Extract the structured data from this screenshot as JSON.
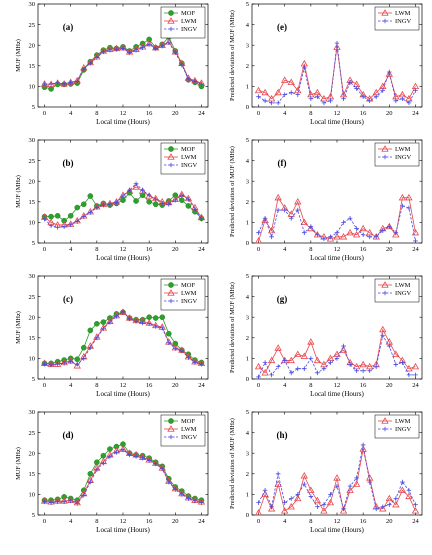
{
  "colors": {
    "mof": "#2ca02c",
    "lwm": "#e8474d",
    "ingv": "#4a4ae0",
    "axis": "#000000"
  },
  "chart_data": [
    {
      "type": "line",
      "panel_label": "(a)",
      "xlabel": "Local time (Hours)",
      "ylabel": "MUF (MHz)",
      "xlim": [
        -1,
        25
      ],
      "ylim": [
        5,
        30
      ],
      "xticks": [
        0,
        4,
        8,
        12,
        16,
        20,
        24
      ],
      "yticks": [
        5,
        10,
        15,
        20,
        25,
        30
      ],
      "legend": "top-right",
      "x": [
        0,
        1,
        2,
        3,
        4,
        5,
        6,
        7,
        8,
        9,
        10,
        11,
        12,
        13,
        14,
        15,
        16,
        17,
        18,
        19,
        20,
        21,
        22,
        23,
        24
      ],
      "series": [
        {
          "name": "MOF",
          "marker": "dot",
          "dashed": false,
          "values": [
            9.8,
            9.4,
            10.5,
            10.5,
            10.6,
            10.8,
            14,
            16,
            17.6,
            18.8,
            19.4,
            19.2,
            19.6,
            18.6,
            19.6,
            20.4,
            21.4,
            19.4,
            20.2,
            22,
            18.6,
            15.6,
            11.6,
            11,
            10
          ]
        },
        {
          "name": "LWM",
          "marker": "tri",
          "dashed": false,
          "values": [
            10.6,
            10.5,
            10.8,
            10.6,
            11,
            11.4,
            14.5,
            15.8,
            17.2,
            18.6,
            19,
            19.2,
            19.4,
            18.4,
            19,
            19.6,
            20.4,
            19.4,
            20,
            20.8,
            18.4,
            15.6,
            12,
            11.4,
            10.8
          ]
        },
        {
          "name": "INGV",
          "marker": "plus",
          "dashed": true,
          "values": [
            10.6,
            10.6,
            10.9,
            10.6,
            11,
            11.2,
            14.2,
            15.6,
            17,
            18.4,
            18.8,
            19,
            19.2,
            18.2,
            18.8,
            19.4,
            20.2,
            19.2,
            19.8,
            20.6,
            18.2,
            15.2,
            11.8,
            11.2,
            10.6
          ]
        }
      ]
    },
    {
      "type": "line",
      "panel_label": "(e)",
      "xlabel": "Local time (Hours)",
      "ylabel": "Predicted deviation of MUF (MHz)",
      "xlim": [
        -1,
        25
      ],
      "ylim": [
        0,
        5
      ],
      "xticks": [
        0,
        4,
        8,
        12,
        16,
        20,
        24
      ],
      "yticks": [
        0,
        1,
        2,
        3,
        4,
        5
      ],
      "legend": "top-right",
      "x": [
        0,
        1,
        2,
        3,
        4,
        5,
        6,
        7,
        8,
        9,
        10,
        11,
        12,
        13,
        14,
        15,
        16,
        17,
        18,
        19,
        20,
        21,
        22,
        23,
        24
      ],
      "series": [
        {
          "name": "LWM",
          "marker": "tri",
          "dashed": false,
          "values": [
            0.8,
            0.7,
            0.4,
            0.7,
            1.3,
            1.2,
            0.8,
            2.1,
            0.6,
            0.7,
            0.4,
            0.5,
            2.9,
            0.6,
            1.3,
            1.1,
            0.6,
            0.4,
            0.7,
            1.0,
            1.6,
            0.5,
            0.6,
            0.4,
            1.0
          ]
        },
        {
          "name": "INGV",
          "marker": "plus",
          "dashed": true,
          "values": [
            0.5,
            0.3,
            0.2,
            0.2,
            0.6,
            0.7,
            0.6,
            1.9,
            0.4,
            0.5,
            0.2,
            0.3,
            3.1,
            0.4,
            1.2,
            0.9,
            0.5,
            0.3,
            0.5,
            0.8,
            1.7,
            0.3,
            0.4,
            0.2,
            0.8
          ]
        }
      ]
    },
    {
      "type": "line",
      "panel_label": "(b)",
      "xlabel": "Local time (Hours)",
      "ylabel": "MUF (MHz)",
      "xlim": [
        -1,
        25
      ],
      "ylim": [
        5,
        30
      ],
      "xticks": [
        0,
        4,
        8,
        12,
        16,
        20,
        24
      ],
      "yticks": [
        5,
        10,
        15,
        20,
        25,
        30
      ],
      "legend": "top-right",
      "x": [
        0,
        1,
        2,
        3,
        4,
        5,
        6,
        7,
        8,
        9,
        10,
        11,
        12,
        13,
        14,
        15,
        16,
        17,
        18,
        19,
        20,
        21,
        22,
        23,
        24
      ],
      "series": [
        {
          "name": "MOF",
          "marker": "dot",
          "dashed": false,
          "values": [
            11.4,
            11.4,
            11.6,
            10.4,
            11.6,
            13.6,
            14.4,
            16.4,
            14,
            14.6,
            14.2,
            14.6,
            15.4,
            17.2,
            15.2,
            16.6,
            15,
            14.4,
            14.2,
            15.2,
            16.6,
            15.4,
            14,
            12.6,
            11
          ]
        },
        {
          "name": "LWM",
          "marker": "tri",
          "dashed": false,
          "values": [
            11.3,
            10,
            9.4,
            9.4,
            9.6,
            10.4,
            11.6,
            12.6,
            13.8,
            14.4,
            14.6,
            15,
            16.6,
            17.6,
            18.6,
            17.6,
            16.4,
            15.8,
            15,
            14.8,
            15.6,
            16.8,
            15.8,
            13.6,
            11.2
          ]
        },
        {
          "name": "INGV",
          "marker": "plus",
          "dashed": true,
          "values": [
            10.8,
            9.2,
            8.8,
            9.0,
            9.4,
            10.2,
            11.4,
            12.4,
            13.6,
            14.2,
            14.4,
            14.8,
            16.4,
            17.8,
            19.4,
            17.8,
            16.6,
            15.6,
            14.6,
            14.4,
            15.4,
            16.6,
            15.6,
            13.2,
            10.8
          ]
        }
      ]
    },
    {
      "type": "line",
      "panel_label": "(f)",
      "xlabel": "Local time (Hours)",
      "ylabel": "Predicted deviation of MUF (MHz)",
      "xlim": [
        -1,
        25
      ],
      "ylim": [
        0,
        5
      ],
      "xticks": [
        0,
        4,
        8,
        12,
        16,
        20,
        24
      ],
      "yticks": [
        0,
        1,
        2,
        3,
        4,
        5
      ],
      "legend": "top-right",
      "x": [
        0,
        1,
        2,
        3,
        4,
        5,
        6,
        7,
        8,
        9,
        10,
        11,
        12,
        13,
        14,
        15,
        16,
        17,
        18,
        19,
        20,
        21,
        22,
        23,
        24
      ],
      "series": [
        {
          "name": "LWM",
          "marker": "tri",
          "dashed": false,
          "values": [
            0.1,
            1.1,
            0.6,
            2.2,
            1.7,
            1.4,
            2.0,
            1.0,
            0.7,
            0.4,
            0.3,
            0.2,
            0.3,
            0.3,
            0.5,
            0.4,
            0.7,
            0.5,
            0.3,
            0.7,
            0.8,
            0.4,
            2.2,
            2.2,
            0.5
          ]
        },
        {
          "name": "INGV",
          "marker": "plus",
          "dashed": true,
          "values": [
            0.5,
            1.2,
            0.3,
            1.6,
            1.6,
            1.2,
            1.6,
            0.5,
            0.8,
            0.4,
            0.2,
            0.3,
            0.5,
            1.0,
            1.2,
            0.7,
            0.4,
            0.3,
            0.3,
            0.6,
            0.8,
            0.5,
            1.8,
            1.7,
            0.1
          ]
        }
      ]
    },
    {
      "type": "line",
      "panel_label": "(c)",
      "xlabel": "Local time (Hours)",
      "ylabel": "MUF (MHz)",
      "xlim": [
        -1,
        25
      ],
      "ylim": [
        5,
        30
      ],
      "xticks": [
        0,
        4,
        8,
        12,
        16,
        20,
        24
      ],
      "yticks": [
        5,
        10,
        15,
        20,
        25,
        30
      ],
      "legend": "top-right",
      "x": [
        0,
        1,
        2,
        3,
        4,
        5,
        6,
        7,
        8,
        9,
        10,
        11,
        12,
        13,
        14,
        15,
        16,
        17,
        18,
        19,
        20,
        21,
        22,
        23,
        24
      ],
      "series": [
        {
          "name": "MOF",
          "marker": "dot",
          "dashed": false,
          "values": [
            8.8,
            8.8,
            9.2,
            9.6,
            10,
            9.8,
            12.6,
            16.8,
            18.4,
            18.8,
            19.8,
            20.8,
            21.2,
            19.8,
            19.4,
            19.4,
            20,
            19.8,
            20,
            16,
            13.6,
            12,
            11,
            9.6,
            9
          ]
        },
        {
          "name": "LWM",
          "marker": "tri",
          "dashed": false,
          "values": [
            8.8,
            8.6,
            8.6,
            9,
            9.4,
            8.2,
            10.4,
            13,
            15.2,
            17.4,
            19,
            20.4,
            21.2,
            19.8,
            19.2,
            19,
            18.6,
            18,
            17.6,
            14,
            12.6,
            12,
            10.4,
            9.2,
            8.8
          ]
        },
        {
          "name": "INGV",
          "marker": "plus",
          "dashed": true,
          "values": [
            8.6,
            8.4,
            8.6,
            8.8,
            9.2,
            8.6,
            10,
            12.6,
            15,
            17.2,
            18.8,
            20.2,
            21.4,
            19.6,
            19,
            18.6,
            18.4,
            17.8,
            17.4,
            13.8,
            12.4,
            11.8,
            10.2,
            9,
            8.6
          ]
        }
      ]
    },
    {
      "type": "line",
      "panel_label": "(g)",
      "xlabel": "Local time (Hours)",
      "ylabel": "Predicted deviation of MUF (MHz)",
      "xlim": [
        -1,
        25
      ],
      "ylim": [
        0,
        5
      ],
      "xticks": [
        0,
        4,
        8,
        12,
        16,
        20,
        24
      ],
      "yticks": [
        0,
        1,
        2,
        3,
        4,
        5
      ],
      "legend": "top-right",
      "x": [
        0,
        1,
        2,
        3,
        4,
        5,
        6,
        7,
        8,
        9,
        10,
        11,
        12,
        13,
        14,
        15,
        16,
        17,
        18,
        19,
        20,
        21,
        22,
        23,
        24
      ],
      "series": [
        {
          "name": "LWM",
          "marker": "tri",
          "dashed": false,
          "values": [
            0.6,
            0.3,
            0.9,
            1.5,
            0.9,
            0.9,
            1.2,
            1.1,
            1.8,
            0.9,
            0.7,
            1.0,
            1.2,
            1.4,
            0.8,
            0.6,
            0.7,
            0.6,
            0.7,
            2.4,
            1.8,
            1.2,
            0.9,
            0.5,
            0.6
          ]
        },
        {
          "name": "INGV",
          "marker": "plus",
          "dashed": true,
          "values": [
            0.1,
            0.8,
            0.2,
            0.6,
            0.9,
            0.3,
            0.5,
            0.5,
            1.0,
            0.3,
            0.5,
            0.8,
            1.0,
            1.6,
            0.7,
            0.4,
            0.4,
            0.4,
            0.6,
            2.1,
            1.6,
            0.7,
            0.8,
            0.2,
            0.2
          ]
        }
      ]
    },
    {
      "type": "line",
      "panel_label": "(d)",
      "xlabel": "Local time (Hours)",
      "ylabel": "MUF (MHz)",
      "xlim": [
        -1,
        25
      ],
      "ylim": [
        5,
        30
      ],
      "xticks": [
        0,
        4,
        8,
        12,
        16,
        20,
        24
      ],
      "yticks": [
        5,
        10,
        15,
        20,
        25,
        30
      ],
      "legend": "top-right",
      "x": [
        0,
        1,
        2,
        3,
        4,
        5,
        6,
        7,
        8,
        9,
        10,
        11,
        12,
        13,
        14,
        15,
        16,
        17,
        18,
        19,
        20,
        21,
        22,
        23,
        24
      ],
      "series": [
        {
          "name": "MOF",
          "marker": "dot",
          "dashed": false,
          "values": [
            8.6,
            8.6,
            8.8,
            9.4,
            9,
            8.6,
            11,
            15,
            17.8,
            19.4,
            21,
            21.6,
            22.2,
            20,
            19.6,
            19.4,
            18.8,
            17.8,
            16.8,
            13.8,
            11.8,
            10.8,
            9.6,
            9,
            8.6
          ]
        },
        {
          "name": "LWM",
          "marker": "tri",
          "dashed": false,
          "values": [
            8.4,
            8.2,
            8.4,
            8.4,
            8.6,
            8,
            10.2,
            13.4,
            16.4,
            18,
            19.6,
            20.6,
            21,
            20,
            19.6,
            19,
            18.4,
            17.6,
            16.4,
            13.2,
            11.4,
            10.2,
            9.2,
            8.6,
            8.2
          ]
        },
        {
          "name": "INGV",
          "marker": "plus",
          "dashed": true,
          "values": [
            8.2,
            8,
            8.2,
            8.2,
            8.4,
            7.8,
            9.8,
            13,
            16,
            17.6,
            19.2,
            20.2,
            20.8,
            19.6,
            19.2,
            18.8,
            18.2,
            17.4,
            16.2,
            13,
            11.2,
            10,
            9,
            8.4,
            8
          ]
        }
      ]
    },
    {
      "type": "line",
      "panel_label": "(h)",
      "xlabel": "Local time (Hours)",
      "ylabel": "Predicted deviation of MUF (MHz)",
      "xlim": [
        -1,
        25
      ],
      "ylim": [
        0,
        5
      ],
      "xticks": [
        0,
        4,
        8,
        12,
        16,
        20,
        24
      ],
      "yticks": [
        0,
        1,
        2,
        3,
        4,
        5
      ],
      "legend": "top-right",
      "x": [
        0,
        1,
        2,
        3,
        4,
        5,
        6,
        7,
        8,
        9,
        10,
        11,
        12,
        13,
        14,
        15,
        16,
        17,
        18,
        19,
        20,
        21,
        22,
        23,
        24
      ],
      "series": [
        {
          "name": "LWM",
          "marker": "tri",
          "dashed": false,
          "values": [
            0.1,
            1.0,
            0.3,
            1.5,
            0.2,
            0.4,
            0.8,
            1.9,
            1.2,
            0.7,
            0.2,
            0.6,
            1.8,
            0.2,
            1.2,
            1.5,
            3.2,
            1.8,
            0.4,
            0.3,
            0.8,
            0.5,
            1.2,
            0.9,
            0.2
          ]
        },
        {
          "name": "INGV",
          "marker": "plus",
          "dashed": true,
          "values": [
            0.6,
            1.2,
            0.4,
            2.0,
            0.6,
            0.8,
            1.0,
            1.5,
            0.9,
            0.4,
            0.5,
            1.0,
            1.4,
            0.3,
            1.4,
            1.8,
            3.4,
            1.6,
            0.3,
            0.4,
            0.5,
            0.8,
            1.6,
            1.2,
            0.5
          ]
        }
      ]
    }
  ]
}
